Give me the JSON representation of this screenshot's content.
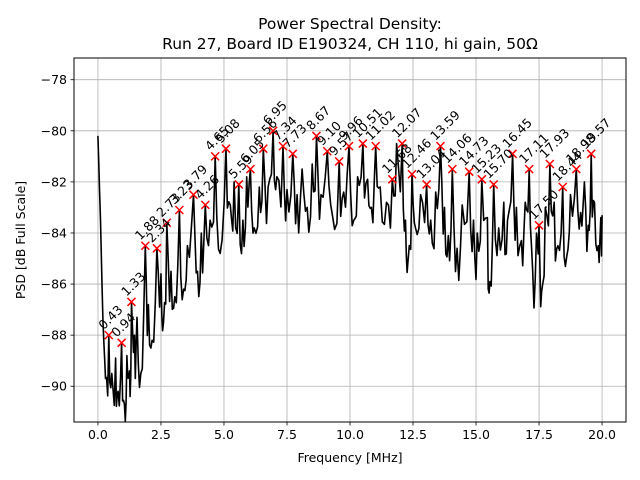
{
  "chart_data": {
    "type": "line",
    "title": [
      "Power Spectral Density:",
      "Run 27, Board ID E190324, CH 110, hi gain, 50Ω"
    ],
    "xlabel": "Frequency [MHz]",
    "ylabel": "PSD [dB Full Scale]",
    "xlim": [
      -0.95,
      20.95
    ],
    "ylim": [
      -91.4,
      -77.15
    ],
    "xticks": [
      0.0,
      2.5,
      5.0,
      7.5,
      10.0,
      12.5,
      15.0,
      17.5,
      20.0
    ],
    "xtick_labels": [
      "0.0",
      "2.5",
      "5.0",
      "7.5",
      "10.0",
      "12.5",
      "15.0",
      "17.5",
      "20.0"
    ],
    "yticks": [
      -90,
      -88,
      -86,
      -84,
      -82,
      -80,
      -78
    ],
    "ytick_labels": [
      "−90",
      "−88",
      "−86",
      "−84",
      "−82",
      "−80",
      "−78"
    ],
    "grid": true,
    "line_color": "#000000",
    "marker_color": "#ff0000",
    "series": [
      {
        "name": "PSD",
        "x_start": 0.0,
        "x_end": 20.0,
        "anchor_points": [
          [
            0.0,
            -80.2
          ],
          [
            0.1,
            -83.5
          ],
          [
            0.2,
            -87.5
          ],
          [
            0.3,
            -89.7
          ],
          [
            0.43,
            -88.0
          ],
          [
            0.55,
            -89.5
          ],
          [
            0.7,
            -88.9
          ],
          [
            0.8,
            -90.2
          ],
          [
            0.94,
            -88.3
          ],
          [
            1.05,
            -90.7
          ],
          [
            1.15,
            -88.8
          ],
          [
            1.25,
            -89.4
          ],
          [
            1.33,
            -86.7
          ],
          [
            1.45,
            -88.0
          ],
          [
            1.55,
            -87.3
          ],
          [
            1.7,
            -89.5
          ],
          [
            1.88,
            -84.5
          ],
          [
            2.0,
            -86.8
          ],
          [
            2.15,
            -88.2
          ],
          [
            2.34,
            -84.6
          ],
          [
            2.5,
            -85.6
          ],
          [
            2.6,
            -87.5
          ],
          [
            2.73,
            -83.6
          ],
          [
            2.9,
            -85.5
          ],
          [
            3.05,
            -86.5
          ],
          [
            3.23,
            -83.1
          ],
          [
            3.4,
            -86.2
          ],
          [
            3.55,
            -84.5
          ],
          [
            3.79,
            -82.5
          ],
          [
            3.95,
            -85.5
          ],
          [
            4.1,
            -84.0
          ],
          [
            4.26,
            -82.9
          ],
          [
            4.45,
            -83.5
          ],
          [
            4.65,
            -81.0
          ],
          [
            4.85,
            -84.8
          ],
          [
            5.08,
            -80.7
          ],
          [
            5.25,
            -82.9
          ],
          [
            5.4,
            -82.0
          ],
          [
            5.59,
            -82.1
          ],
          [
            5.75,
            -83.5
          ],
          [
            5.9,
            -81.8
          ],
          [
            6.05,
            -81.5
          ],
          [
            6.2,
            -83.8
          ],
          [
            6.4,
            -82.2
          ],
          [
            6.56,
            -80.7
          ],
          [
            6.75,
            -82.2
          ],
          [
            6.95,
            -80.0
          ],
          [
            7.1,
            -81.8
          ],
          [
            7.34,
            -80.6
          ],
          [
            7.5,
            -82.3
          ],
          [
            7.73,
            -80.9
          ],
          [
            7.9,
            -82.5
          ],
          [
            8.1,
            -81.5
          ],
          [
            8.3,
            -83.0
          ],
          [
            8.5,
            -81.3
          ],
          [
            8.67,
            -80.2
          ],
          [
            8.85,
            -82.5
          ],
          [
            9.1,
            -80.8
          ],
          [
            9.3,
            -83.3
          ],
          [
            9.57,
            -81.2
          ],
          [
            9.75,
            -82.4
          ],
          [
            9.96,
            -80.6
          ],
          [
            10.15,
            -83.5
          ],
          [
            10.3,
            -81.8
          ],
          [
            10.51,
            -80.5
          ],
          [
            10.7,
            -81.9
          ],
          [
            10.85,
            -83.0
          ],
          [
            11.02,
            -80.6
          ],
          [
            11.2,
            -82.2
          ],
          [
            11.45,
            -82.8
          ],
          [
            11.68,
            -81.9
          ],
          [
            11.85,
            -80.5
          ],
          [
            12.07,
            -80.5
          ],
          [
            12.2,
            -83.5
          ],
          [
            12.3,
            -85.1
          ],
          [
            12.46,
            -81.7
          ],
          [
            12.6,
            -83.8
          ],
          [
            12.8,
            -82.5
          ],
          [
            13.04,
            -82.1
          ],
          [
            13.2,
            -83.5
          ],
          [
            13.4,
            -82.4
          ],
          [
            13.59,
            -80.6
          ],
          [
            13.75,
            -83.0
          ],
          [
            13.9,
            -84.1
          ],
          [
            14.06,
            -81.5
          ],
          [
            14.25,
            -84.6
          ],
          [
            14.45,
            -82.9
          ],
          [
            14.73,
            -81.6
          ],
          [
            14.9,
            -83.5
          ],
          [
            15.05,
            -84.0
          ],
          [
            15.23,
            -81.9
          ],
          [
            15.45,
            -83.4
          ],
          [
            15.55,
            -85.9
          ],
          [
            15.7,
            -82.1
          ],
          [
            15.9,
            -83.8
          ],
          [
            16.1,
            -82.8
          ],
          [
            16.25,
            -83.5
          ],
          [
            16.45,
            -80.9
          ],
          [
            16.6,
            -83.0
          ],
          [
            16.8,
            -84.3
          ],
          [
            16.95,
            -82.8
          ],
          [
            17.11,
            -81.5
          ],
          [
            17.25,
            -85.5
          ],
          [
            17.4,
            -84.0
          ],
          [
            17.5,
            -83.7
          ],
          [
            17.6,
            -86.3
          ],
          [
            17.75,
            -83.0
          ],
          [
            17.93,
            -81.3
          ],
          [
            18.1,
            -82.8
          ],
          [
            18.25,
            -84.5
          ],
          [
            18.44,
            -82.2
          ],
          [
            18.6,
            -84.9
          ],
          [
            18.75,
            -82.5
          ],
          [
            18.98,
            -81.5
          ],
          [
            19.15,
            -83.2
          ],
          [
            19.3,
            -82.0
          ],
          [
            19.45,
            -83.7
          ],
          [
            19.57,
            -80.9
          ],
          [
            19.7,
            -82.8
          ],
          [
            19.85,
            -84.5
          ],
          [
            19.95,
            -83.4
          ],
          [
            20.0,
            -83.3
          ]
        ]
      }
    ],
    "peaks": [
      {
        "label": "0.43",
        "x": 0.43,
        "y": -88.0
      },
      {
        "label": "0.94",
        "x": 0.94,
        "y": -88.3
      },
      {
        "label": "1.33",
        "x": 1.33,
        "y": -86.7
      },
      {
        "label": "1.88",
        "x": 1.88,
        "y": -84.5
      },
      {
        "label": "2.34",
        "x": 2.34,
        "y": -84.6
      },
      {
        "label": "2.73",
        "x": 2.73,
        "y": -83.6
      },
      {
        "label": "3.23",
        "x": 3.23,
        "y": -83.1
      },
      {
        "label": "3.79",
        "x": 3.79,
        "y": -82.5
      },
      {
        "label": "4.26",
        "x": 4.26,
        "y": -82.9
      },
      {
        "label": "4.65",
        "x": 4.65,
        "y": -81.0
      },
      {
        "label": "5.08",
        "x": 5.08,
        "y": -80.7
      },
      {
        "label": "5.59",
        "x": 5.59,
        "y": -82.1
      },
      {
        "label": "6.05",
        "x": 6.05,
        "y": -81.5
      },
      {
        "label": "6.56",
        "x": 6.56,
        "y": -80.7
      },
      {
        "label": "6.95",
        "x": 6.95,
        "y": -80.0
      },
      {
        "label": "7.34",
        "x": 7.34,
        "y": -80.6
      },
      {
        "label": "7.73",
        "x": 7.73,
        "y": -80.9
      },
      {
        "label": "8.67",
        "x": 8.67,
        "y": -80.2
      },
      {
        "label": "9.10",
        "x": 9.1,
        "y": -80.8
      },
      {
        "label": "9.57",
        "x": 9.57,
        "y": -81.2
      },
      {
        "label": "9.96",
        "x": 9.96,
        "y": -80.6
      },
      {
        "label": "10.51",
        "x": 10.51,
        "y": -80.5
      },
      {
        "label": "11.02",
        "x": 11.02,
        "y": -80.6
      },
      {
        "label": "11.68",
        "x": 11.68,
        "y": -81.9
      },
      {
        "label": "12.07",
        "x": 12.07,
        "y": -80.5
      },
      {
        "label": "12.46",
        "x": 12.46,
        "y": -81.7
      },
      {
        "label": "13.04",
        "x": 13.04,
        "y": -82.1
      },
      {
        "label": "13.59",
        "x": 13.59,
        "y": -80.6
      },
      {
        "label": "14.06",
        "x": 14.06,
        "y": -81.5
      },
      {
        "label": "14.73",
        "x": 14.73,
        "y": -81.6
      },
      {
        "label": "15.23",
        "x": 15.23,
        "y": -81.9
      },
      {
        "label": "15.70",
        "x": 15.7,
        "y": -82.1
      },
      {
        "label": "16.45",
        "x": 16.45,
        "y": -80.9
      },
      {
        "label": "17.11",
        "x": 17.11,
        "y": -81.5
      },
      {
        "label": "17.50",
        "x": 17.5,
        "y": -83.7
      },
      {
        "label": "17.93",
        "x": 17.93,
        "y": -81.3
      },
      {
        "label": "18.44",
        "x": 18.44,
        "y": -82.2
      },
      {
        "label": "18.98",
        "x": 18.98,
        "y": -81.5
      },
      {
        "label": "19.57",
        "x": 19.57,
        "y": -80.9
      }
    ]
  }
}
